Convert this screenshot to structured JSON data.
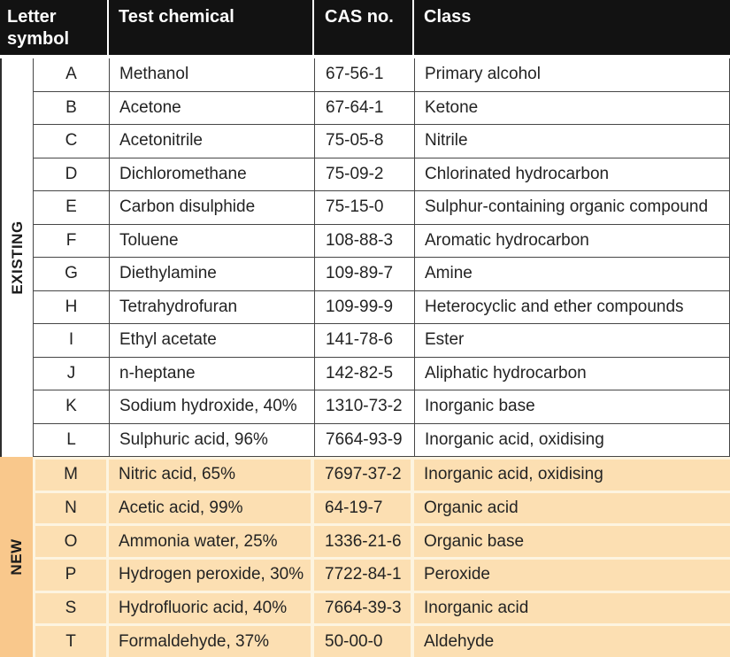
{
  "header": {
    "letter_symbol": "Letter symbol",
    "test_chemical": "Test chemical",
    "cas_no": "CAS no.",
    "class": "Class"
  },
  "sections": [
    {
      "label": "EXISTING",
      "rows": [
        {
          "letter": "A",
          "chemical": "Methanol",
          "cas": "67-56-1",
          "class": "Primary alcohol"
        },
        {
          "letter": "B",
          "chemical": "Acetone",
          "cas": "67-64-1",
          "class": "Ketone"
        },
        {
          "letter": "C",
          "chemical": "Acetonitrile",
          "cas": "75-05-8",
          "class": "Nitrile"
        },
        {
          "letter": "D",
          "chemical": "Dichloromethane",
          "cas": "75-09-2",
          "class": "Chlorinated hydrocarbon"
        },
        {
          "letter": "E",
          "chemical": "Carbon disulphide",
          "cas": "75-15-0",
          "class": "Sulphur-containing organic compound"
        },
        {
          "letter": "F",
          "chemical": "Toluene",
          "cas": "108-88-3",
          "class": "Aromatic hydrocarbon"
        },
        {
          "letter": "G",
          "chemical": "Diethylamine",
          "cas": "109-89-7",
          "class": "Amine"
        },
        {
          "letter": "H",
          "chemical": "Tetrahydrofuran",
          "cas": "109-99-9",
          "class": "Heterocyclic and ether compounds"
        },
        {
          "letter": "I",
          "chemical": "Ethyl acetate",
          "cas": "141-78-6",
          "class": "Ester"
        },
        {
          "letter": "J",
          "chemical": "n-heptane",
          "cas": "142-82-5",
          "class": "Aliphatic hydrocarbon"
        },
        {
          "letter": "K",
          "chemical": "Sodium hydroxide, 40%",
          "cas": "1310-73-2",
          "class": "Inorganic base"
        },
        {
          "letter": "L",
          "chemical": "Sulphuric acid, 96%",
          "cas": "7664-93-9",
          "class": "Inorganic acid, oxidising"
        }
      ]
    },
    {
      "label": "NEW",
      "rows": [
        {
          "letter": "M",
          "chemical": "Nitric acid, 65%",
          "cas": "7697-37-2",
          "class": "Inorganic acid, oxidising"
        },
        {
          "letter": "N",
          "chemical": "Acetic acid, 99%",
          "cas": "64-19-7",
          "class": "Organic acid"
        },
        {
          "letter": "O",
          "chemical": "Ammonia water, 25%",
          "cas": "1336-21-6",
          "class": "Organic base"
        },
        {
          "letter": "P",
          "chemical": "Hydrogen peroxide, 30%",
          "cas": "7722-84-1",
          "class": "Peroxide"
        },
        {
          "letter": "S",
          "chemical": "Hydrofluoric acid, 40%",
          "cas": "7664-39-3",
          "class": "Inorganic acid"
        },
        {
          "letter": "T",
          "chemical": "Formaldehyde, 37%",
          "cas": "50-00-0",
          "class": "Aldehyde"
        }
      ]
    }
  ],
  "colors": {
    "header_bg": "#121212",
    "header_text": "#ffffff",
    "body_text": "#232323",
    "grid_line": "#464646",
    "new_strip_bg": "#f9c88c",
    "new_cell_bg": "#fcdfb2",
    "new_gap_bg": "#fdf4e0"
  }
}
